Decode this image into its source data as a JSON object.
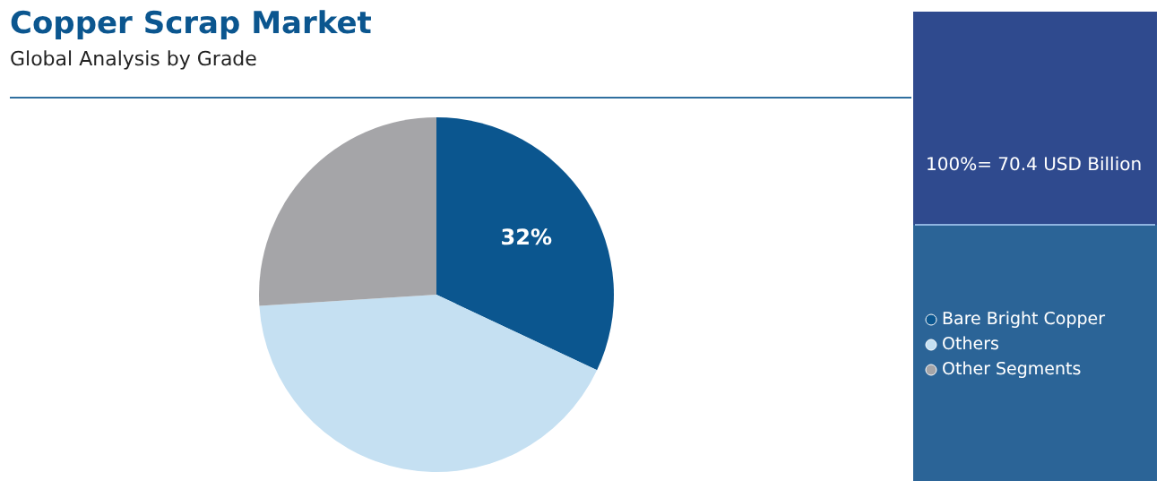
{
  "chart_data": {
    "type": "pie",
    "title": "Copper Scrap Market",
    "subtitle": "Global Analysis by Grade",
    "categories": [
      "Bare Bright Copper",
      "Others",
      "Other Segments"
    ],
    "values": [
      32,
      42,
      26
    ],
    "colors": [
      "#0b568f",
      "#c5e0f2",
      "#a5a5a8"
    ],
    "value_labels": [
      "32%",
      null,
      null
    ],
    "annotations": [
      "100%= 70.4 USD Billion"
    ],
    "legend": "right"
  }
}
